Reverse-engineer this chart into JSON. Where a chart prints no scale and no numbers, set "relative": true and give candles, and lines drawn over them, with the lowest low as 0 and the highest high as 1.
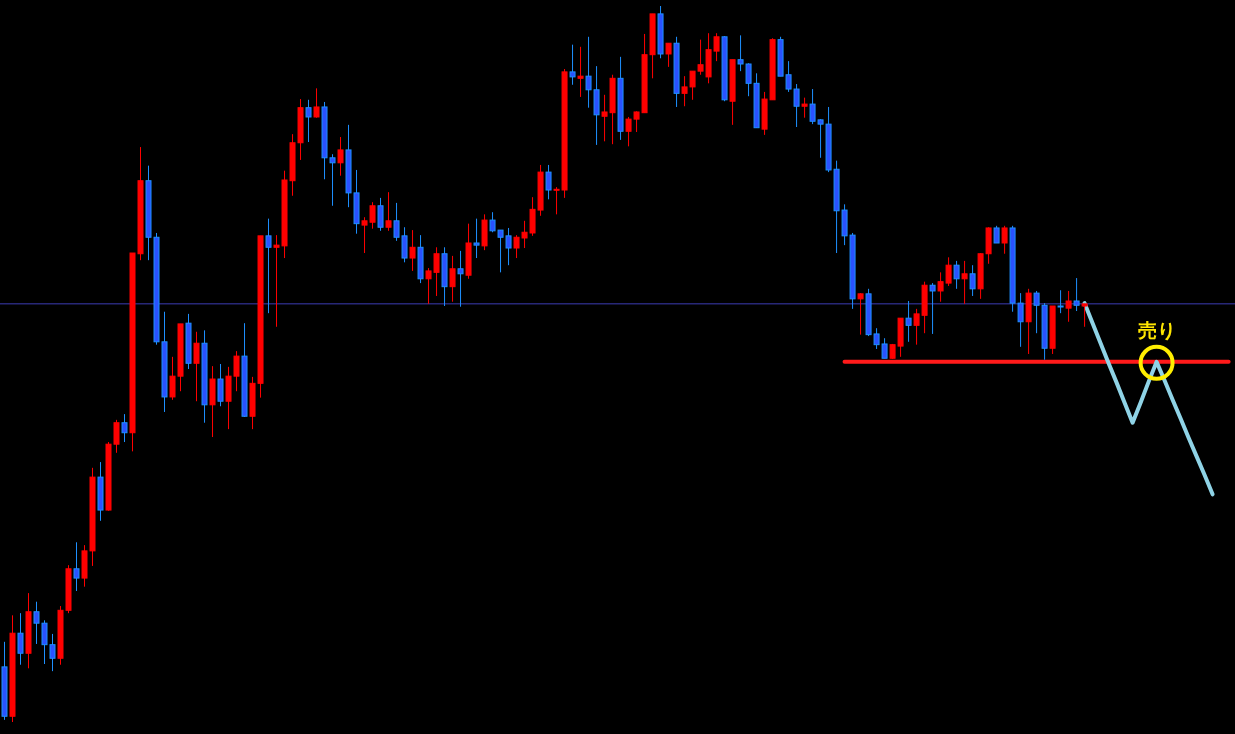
{
  "chart_data": {
    "type": "candlestick",
    "relative": true,
    "categories": [
      null,
      null,
      null,
      null,
      null,
      null,
      null,
      null,
      null,
      null,
      null,
      null,
      null,
      null,
      null,
      null,
      null,
      null,
      null,
      null,
      null,
      null,
      null,
      null,
      null,
      null,
      null,
      null,
      null,
      null,
      null,
      null,
      null,
      null,
      null,
      null,
      null,
      null,
      null,
      null,
      null,
      null,
      null,
      null,
      null,
      null,
      null,
      null,
      null,
      null,
      null,
      null,
      null,
      null,
      null,
      null,
      null,
      null,
      null,
      null,
      null,
      null,
      null,
      null,
      null,
      null,
      null,
      null,
      null,
      null,
      null,
      null,
      null,
      null,
      null,
      null,
      null,
      null,
      null,
      null,
      null,
      null,
      null,
      null,
      null,
      null,
      null,
      null,
      null,
      null,
      null,
      null,
      null,
      null,
      null,
      null,
      null,
      null,
      null,
      null,
      null,
      null,
      null,
      null,
      null,
      null,
      null,
      null,
      null,
      null,
      null,
      null,
      null,
      null,
      null,
      null,
      null,
      null,
      null,
      null,
      null,
      null,
      null,
      null,
      null,
      null,
      null,
      null,
      null,
      null,
      null,
      null,
      null,
      null,
      null,
      null,
      null,
      null,
      null,
      null,
      null,
      null,
      null,
      null,
      null,
      null,
      null,
      null,
      null,
      null,
      null,
      null,
      null,
      null
    ],
    "ohlc": [
      [
        0.077,
        0.112,
        0.003,
        0.008
      ],
      [
        0.008,
        0.149,
        0,
        0.124
      ],
      [
        0.124,
        0.152,
        0.08,
        0.096
      ],
      [
        0.096,
        0.18,
        0.075,
        0.154
      ],
      [
        0.154,
        0.168,
        0.109,
        0.138
      ],
      [
        0.138,
        0.142,
        0.081,
        0.108
      ],
      [
        0.108,
        0.123,
        0.071,
        0.089
      ],
      [
        0.089,
        0.162,
        0.08,
        0.156
      ],
      [
        0.156,
        0.219,
        0.152,
        0.214
      ],
      [
        0.214,
        0.251,
        0.183,
        0.201
      ],
      [
        0.201,
        0.247,
        0.189,
        0.239
      ],
      [
        0.239,
        0.355,
        0.218,
        0.342
      ],
      [
        0.342,
        0.363,
        0.281,
        0.296
      ],
      [
        0.296,
        0.391,
        0.295,
        0.388
      ],
      [
        0.388,
        0.422,
        0.376,
        0.418
      ],
      [
        0.418,
        0.43,
        0.391,
        0.404
      ],
      [
        0.404,
        0.655,
        0.378,
        0.655
      ],
      [
        0.654,
        0.803,
        0.645,
        0.756
      ],
      [
        0.756,
        0.777,
        0.645,
        0.677
      ],
      [
        0.677,
        0.683,
        0.527,
        0.531
      ],
      [
        0.531,
        0.573,
        0.433,
        0.454
      ],
      [
        0.454,
        0.51,
        0.45,
        0.483
      ],
      [
        0.483,
        0.556,
        0.462,
        0.556
      ],
      [
        0.557,
        0.57,
        0.493,
        0.501
      ],
      [
        0.501,
        0.545,
        0.448,
        0.529
      ],
      [
        0.529,
        0.547,
        0.418,
        0.443
      ],
      [
        0.443,
        0.497,
        0.398,
        0.479
      ],
      [
        0.479,
        0.5,
        0.441,
        0.448
      ],
      [
        0.448,
        0.496,
        0.409,
        0.483
      ],
      [
        0.483,
        0.518,
        0.462,
        0.511
      ],
      [
        0.511,
        0.557,
        0.426,
        0.427
      ],
      [
        0.427,
        0.482,
        0.409,
        0.473
      ],
      [
        0.473,
        0.679,
        0.453,
        0.679
      ],
      [
        0.679,
        0.703,
        0.571,
        0.663
      ],
      [
        0.663,
        0.68,
        0.552,
        0.666
      ],
      [
        0.665,
        0.77,
        0.648,
        0.757
      ],
      [
        0.756,
        0.821,
        0.735,
        0.809
      ],
      [
        0.809,
        0.87,
        0.785,
        0.858
      ],
      [
        0.858,
        0.869,
        0.81,
        0.845
      ],
      [
        0.845,
        0.885,
        0.844,
        0.859
      ],
      [
        0.859,
        0.866,
        0.758,
        0.788
      ],
      [
        0.788,
        0.793,
        0.721,
        0.781
      ],
      [
        0.781,
        0.817,
        0.763,
        0.799
      ],
      [
        0.799,
        0.834,
        0.719,
        0.739
      ],
      [
        0.739,
        0.771,
        0.682,
        0.696
      ],
      [
        0.694,
        0.705,
        0.655,
        0.7
      ],
      [
        0.698,
        0.726,
        0.689,
        0.721
      ],
      [
        0.721,
        0.732,
        0.686,
        0.691
      ],
      [
        0.691,
        0.74,
        0.686,
        0.7
      ],
      [
        0.7,
        0.725,
        0.672,
        0.677
      ],
      [
        0.679,
        0.691,
        0.642,
        0.648
      ],
      [
        0.648,
        0.687,
        0.63,
        0.663
      ],
      [
        0.663,
        0.68,
        0.613,
        0.619
      ],
      [
        0.619,
        0.634,
        0.584,
        0.63
      ],
      [
        0.628,
        0.663,
        0.595,
        0.654
      ],
      [
        0.654,
        0.663,
        0.581,
        0.608
      ],
      [
        0.608,
        0.651,
        0.587,
        0.633
      ],
      [
        0.633,
        0.658,
        0.58,
        0.626
      ],
      [
        0.624,
        0.696,
        0.619,
        0.669
      ],
      [
        0.669,
        0.703,
        0.648,
        0.666
      ],
      [
        0.665,
        0.709,
        0.659,
        0.701
      ],
      [
        0.701,
        0.712,
        0.684,
        0.686
      ],
      [
        0.687,
        0.687,
        0.628,
        0.677
      ],
      [
        0.679,
        0.69,
        0.638,
        0.662
      ],
      [
        0.662,
        0.68,
        0.648,
        0.677
      ],
      [
        0.676,
        0.7,
        0.662,
        0.684
      ],
      [
        0.683,
        0.733,
        0.679,
        0.716
      ],
      [
        0.715,
        0.778,
        0.707,
        0.768
      ],
      [
        0.768,
        0.778,
        0.73,
        0.743
      ],
      [
        0.743,
        0.747,
        0.709,
        0.744
      ],
      [
        0.743,
        0.912,
        0.732,
        0.908
      ],
      [
        0.908,
        0.946,
        0.89,
        0.901
      ],
      [
        0.899,
        0.943,
        0.873,
        0.902
      ],
      [
        0.902,
        0.957,
        0.858,
        0.883
      ],
      [
        0.883,
        0.916,
        0.806,
        0.848
      ],
      [
        0.846,
        0.876,
        0.811,
        0.852
      ],
      [
        0.851,
        0.904,
        0.807,
        0.899
      ],
      [
        0.899,
        0.929,
        0.813,
        0.825
      ],
      [
        0.825,
        0.845,
        0.804,
        0.842
      ],
      [
        0.842,
        0.853,
        0.824,
        0.852
      ],
      [
        0.851,
        0.961,
        0.851,
        0.932
      ],
      [
        0.932,
        0.989,
        0.899,
        0.989
      ],
      [
        0.989,
        1,
        0.927,
        0.933
      ],
      [
        0.933,
        0.948,
        0.915,
        0.948
      ],
      [
        0.948,
        0.957,
        0.859,
        0.878
      ],
      [
        0.878,
        0.902,
        0.86,
        0.887
      ],
      [
        0.887,
        0.909,
        0.869,
        0.909
      ],
      [
        0.909,
        0.953,
        0.904,
        0.918
      ],
      [
        0.901,
        0.962,
        0.892,
        0.939
      ],
      [
        0.937,
        0.962,
        0.923,
        0.957
      ],
      [
        0.957,
        0.958,
        0.867,
        0.869
      ],
      [
        0.867,
        0.925,
        0.834,
        0.925
      ],
      [
        0.925,
        0.959,
        0.909,
        0.919
      ],
      [
        0.919,
        0.92,
        0.874,
        0.892
      ],
      [
        0.892,
        0.906,
        0.83,
        0.83
      ],
      [
        0.828,
        0.88,
        0.82,
        0.87
      ],
      [
        0.869,
        0.955,
        0.869,
        0.953
      ],
      [
        0.953,
        0.957,
        0.902,
        0.902
      ],
      [
        0.904,
        0.923,
        0.88,
        0.884
      ],
      [
        0.884,
        0.891,
        0.831,
        0.86
      ],
      [
        0.86,
        0.872,
        0.844,
        0.863
      ],
      [
        0.863,
        0.884,
        0.835,
        0.839
      ],
      [
        0.841,
        0.842,
        0.788,
        0.835
      ],
      [
        0.835,
        0.859,
        0.768,
        0.771
      ],
      [
        0.772,
        0.784,
        0.655,
        0.714
      ],
      [
        0.715,
        0.723,
        0.666,
        0.679
      ],
      [
        0.68,
        0.683,
        0.577,
        0.591
      ],
      [
        0.591,
        0.599,
        0.541,
        0.598
      ],
      [
        0.598,
        0.605,
        0.539,
        0.541
      ],
      [
        0.542,
        0.55,
        0.521,
        0.527
      ],
      [
        0.528,
        0.536,
        0.508,
        0.508
      ],
      [
        0.508,
        0.528,
        0.507,
        0.527
      ],
      [
        0.525,
        0.564,
        0.51,
        0.564
      ],
      [
        0.564,
        0.588,
        0.531,
        0.554
      ],
      [
        0.554,
        0.577,
        0.527,
        0.57
      ],
      [
        0.568,
        0.615,
        0.543,
        0.61
      ],
      [
        0.61,
        0.613,
        0.542,
        0.602
      ],
      [
        0.602,
        0.628,
        0.587,
        0.615
      ],
      [
        0.613,
        0.649,
        0.609,
        0.638
      ],
      [
        0.638,
        0.644,
        0.605,
        0.619
      ],
      [
        0.619,
        0.644,
        0.584,
        0.626
      ],
      [
        0.626,
        0.638,
        0.595,
        0.605
      ],
      [
        0.605,
        0.655,
        0.591,
        0.654
      ],
      [
        0.654,
        0.691,
        0.64,
        0.69
      ],
      [
        0.69,
        0.693,
        0.669,
        0.669
      ],
      [
        0.669,
        0.693,
        0.654,
        0.69
      ],
      [
        0.69,
        0.693,
        0.573,
        0.585
      ],
      [
        0.585,
        0.599,
        0.524,
        0.559
      ],
      [
        0.559,
        0.605,
        0.514,
        0.599
      ],
      [
        0.599,
        0.602,
        0.543,
        0.582
      ],
      [
        0.582,
        0.585,
        0.506,
        0.522
      ],
      [
        0.522,
        0.581,
        0.514,
        0.581
      ],
      [
        0.581,
        0.603,
        0.571,
        0.58
      ],
      [
        0.578,
        0.602,
        0.559,
        0.588
      ],
      [
        0.588,
        0.62,
        0.574,
        0.582
      ],
      [
        0.581,
        0.584,
        0.552,
        0.584
      ],
      null,
      null,
      null,
      null,
      null,
      null,
      null,
      null,
      null,
      null,
      null,
      null,
      null,
      null,
      null,
      null,
      null,
      null
    ],
    "series": [
      {
        "type": "line",
        "color": "#ff1a1a",
        "values": [
          null,
          null,
          null,
          null,
          null,
          null,
          null,
          null,
          null,
          null,
          null,
          null,
          null,
          null,
          null,
          null,
          null,
          null,
          null,
          null,
          null,
          null,
          null,
          null,
          null,
          null,
          null,
          null,
          null,
          null,
          null,
          null,
          null,
          null,
          null,
          null,
          null,
          null,
          null,
          null,
          null,
          null,
          null,
          null,
          null,
          null,
          null,
          null,
          null,
          null,
          null,
          null,
          null,
          null,
          null,
          null,
          null,
          null,
          null,
          null,
          null,
          null,
          null,
          null,
          null,
          null,
          null,
          null,
          null,
          null,
          null,
          null,
          null,
          null,
          null,
          null,
          null,
          null,
          null,
          null,
          null,
          null,
          null,
          null,
          null,
          null,
          null,
          null,
          null,
          null,
          null,
          null,
          null,
          null,
          null,
          null,
          null,
          null,
          null,
          null,
          null,
          null,
          null,
          null,
          null,
          0.503,
          0.503,
          0.503,
          0.503,
          0.503,
          0.503,
          0.503,
          0.503,
          0.503,
          0.503,
          0.503,
          0.503,
          0.503,
          0.503,
          0.503,
          0.503,
          0.503,
          0.503,
          0.503,
          0.503,
          0.503,
          0.503,
          0.503,
          0.503,
          0.503,
          0.503,
          0.503,
          0.503,
          0.503,
          0.503,
          0.503,
          0.503,
          0.503,
          0.503,
          0.503,
          0.503,
          0.503,
          0.503,
          0.503,
          0.503,
          0.503,
          0.503,
          0.503,
          0.503,
          0.503,
          0.503,
          0.503,
          0.503,
          0.503
        ]
      },
      {
        "type": "line",
        "color": "#8fd3e6",
        "values": [
          null,
          null,
          null,
          null,
          null,
          null,
          null,
          null,
          null,
          null,
          null,
          null,
          null,
          null,
          null,
          null,
          null,
          null,
          null,
          null,
          null,
          null,
          null,
          null,
          null,
          null,
          null,
          null,
          null,
          null,
          null,
          null,
          null,
          null,
          null,
          null,
          null,
          null,
          null,
          null,
          null,
          null,
          null,
          null,
          null,
          null,
          null,
          null,
          null,
          null,
          null,
          null,
          null,
          null,
          null,
          null,
          null,
          null,
          null,
          null,
          null,
          null,
          null,
          null,
          null,
          null,
          null,
          null,
          null,
          null,
          null,
          null,
          null,
          null,
          null,
          null,
          null,
          null,
          null,
          null,
          null,
          null,
          null,
          null,
          null,
          null,
          null,
          null,
          null,
          null,
          null,
          null,
          null,
          null,
          null,
          null,
          null,
          null,
          null,
          null,
          null,
          null,
          null,
          null,
          null,
          null,
          null,
          null,
          null,
          null,
          null,
          null,
          null,
          null,
          null,
          null,
          null,
          null,
          null,
          null,
          null,
          null,
          null,
          null,
          null,
          null,
          null,
          null,
          null,
          null,
          null,
          null,
          null,
          null,
          null,
          0.585,
          0.557,
          0.529,
          0.501,
          0.474,
          0.446,
          0.418,
          0.446,
          0.475,
          0.503,
          0.477,
          0.45,
          0.424,
          0.397,
          0.371,
          0.345,
          0.318,
          null,
          null
        ]
      }
    ],
    "ref_lines": [
      {
        "axis": "y",
        "value": 0.584,
        "color": "#3c3cb4"
      }
    ],
    "annotations": [
      {
        "text": "売り",
        "y": 0.503
      }
    ]
  }
}
